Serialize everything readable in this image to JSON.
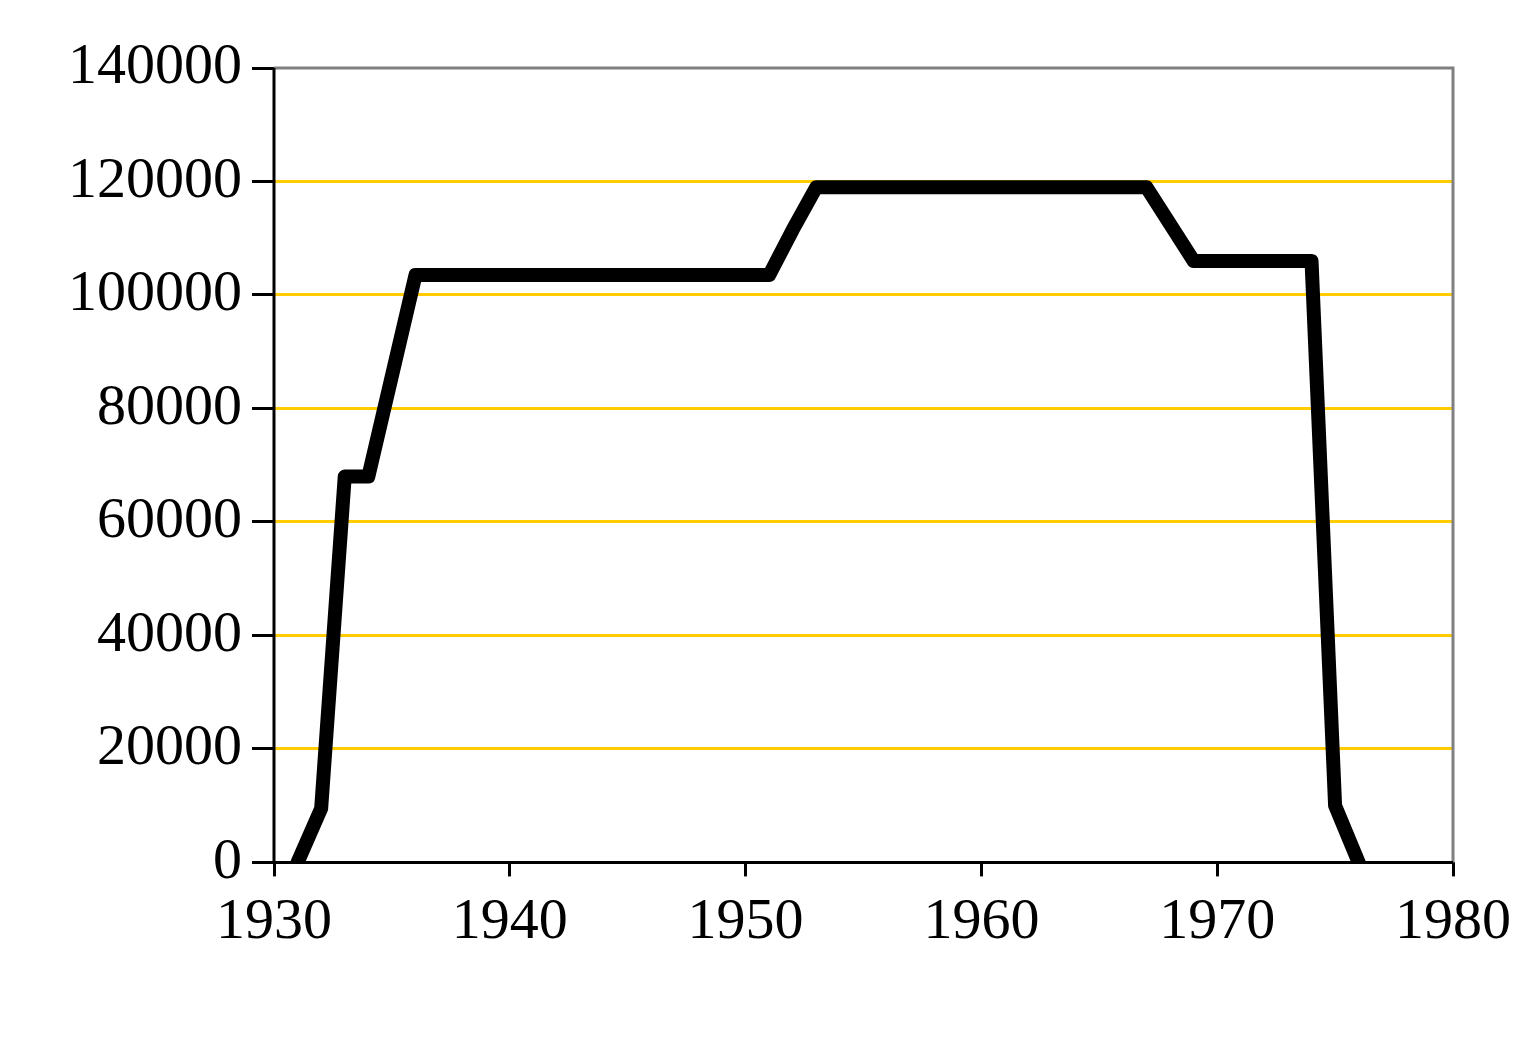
{
  "chart_data": {
    "type": "line",
    "x": [
      1931,
      1932,
      1933,
      1934,
      1936,
      1951,
      1952,
      1953,
      1967,
      1969,
      1974,
      1975,
      1976
    ],
    "series": [
      {
        "color": "#000000",
        "values": [
          0,
          9500,
          68000,
          68000,
          103500,
          103500,
          111500,
          119000,
          119000,
          106000,
          106000,
          10000,
          0
        ]
      }
    ],
    "xlim": [
      1930,
      1980
    ],
    "xticks": [
      1930,
      1940,
      1950,
      1960,
      1970,
      1980
    ],
    "ylim": [
      0,
      140000
    ],
    "yticks": [
      0,
      20000,
      40000,
      60000,
      80000,
      100000,
      120000,
      140000
    ],
    "grid": "y",
    "legend": false,
    "marker": "none",
    "line_style": "solid"
  }
}
